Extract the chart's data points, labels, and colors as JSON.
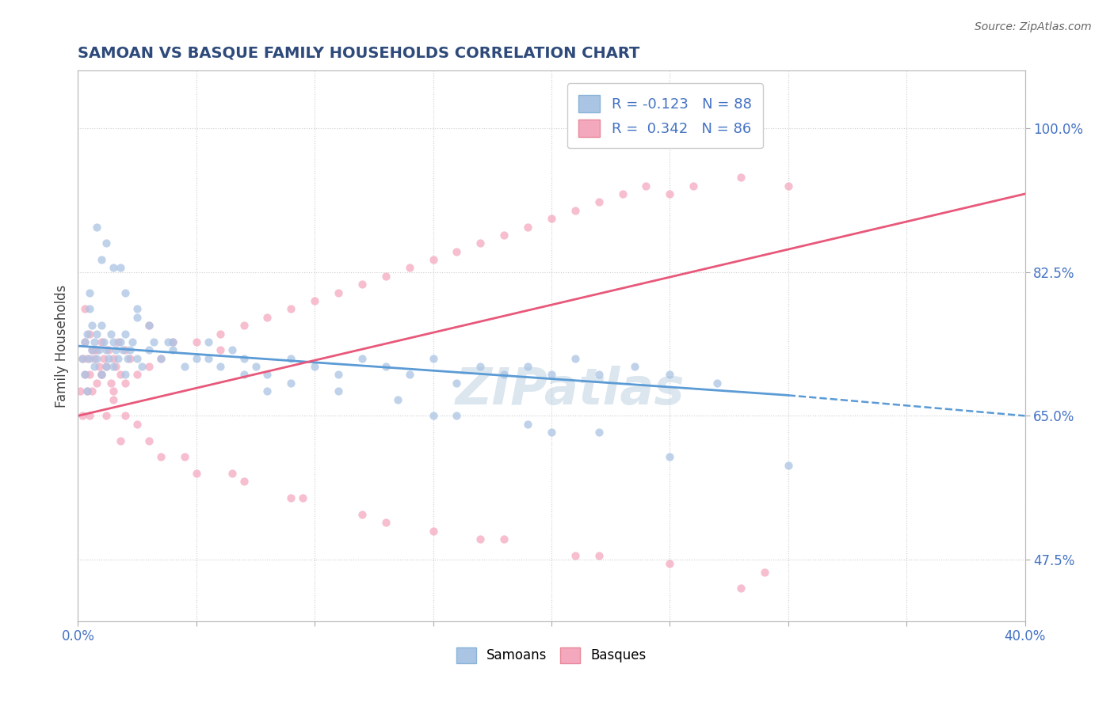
{
  "title": "SAMOAN VS BASQUE FAMILY HOUSEHOLDS CORRELATION CHART",
  "source": "Source: ZipAtlas.com",
  "ylabel": "Family Households",
  "right_yticks": [
    47.5,
    65.0,
    82.5,
    100.0
  ],
  "xlim": [
    0.0,
    40.0
  ],
  "ylim": [
    40.0,
    107.0
  ],
  "samoan_color": "#aac4e4",
  "basque_color": "#f4a8be",
  "trend_samoan_color": "#5b9bd5",
  "trend_basque_color": "#e8587a",
  "background_color": "#ffffff",
  "dot_size": 55,
  "dot_alpha": 0.75,
  "grid_color": "#cccccc",
  "title_color": "#2e4a7a",
  "watermark_color": "#b8cee0",
  "title_fontsize": 14,
  "right_tick_color": "#4472c4",
  "x_tick_color": "#4472c4",
  "samoan_x": [
    0.2,
    0.3,
    0.3,
    0.4,
    0.4,
    0.5,
    0.5,
    0.5,
    0.6,
    0.6,
    0.7,
    0.7,
    0.8,
    0.8,
    0.9,
    1.0,
    1.0,
    1.1,
    1.2,
    1.2,
    1.3,
    1.4,
    1.5,
    1.5,
    1.6,
    1.7,
    1.8,
    1.9,
    2.0,
    2.0,
    2.1,
    2.2,
    2.3,
    2.5,
    2.7,
    3.0,
    3.2,
    3.5,
    3.8,
    4.0,
    4.5,
    5.0,
    5.5,
    6.0,
    6.5,
    7.0,
    7.5,
    8.0,
    9.0,
    10.0,
    11.0,
    12.0,
    13.0,
    14.0,
    15.0,
    16.0,
    17.0,
    18.0,
    19.0,
    20.0,
    21.0,
    22.0,
    23.5,
    25.0,
    27.0,
    1.0,
    1.5,
    2.0,
    2.5,
    3.0,
    4.0,
    5.5,
    7.0,
    9.0,
    11.0,
    13.5,
    16.0,
    19.0,
    22.0,
    8.0,
    15.0,
    20.0,
    25.0,
    30.0,
    0.8,
    1.2,
    1.8,
    2.5
  ],
  "samoan_y": [
    72,
    74,
    70,
    75,
    68,
    80,
    78,
    72,
    76,
    73,
    74,
    71,
    75,
    72,
    73,
    76,
    70,
    74,
    73,
    71,
    72,
    75,
    74,
    71,
    73,
    72,
    74,
    73,
    75,
    70,
    72,
    73,
    74,
    72,
    71,
    73,
    74,
    72,
    74,
    73,
    71,
    72,
    74,
    71,
    73,
    72,
    71,
    70,
    72,
    71,
    70,
    72,
    71,
    70,
    72,
    69,
    71,
    70,
    71,
    70,
    72,
    70,
    71,
    70,
    69,
    84,
    83,
    80,
    77,
    76,
    74,
    72,
    70,
    69,
    68,
    67,
    65,
    64,
    63,
    68,
    65,
    63,
    60,
    59,
    88,
    86,
    83,
    78
  ],
  "basque_x": [
    0.1,
    0.2,
    0.2,
    0.3,
    0.3,
    0.4,
    0.4,
    0.5,
    0.5,
    0.6,
    0.6,
    0.7,
    0.8,
    0.8,
    0.9,
    1.0,
    1.0,
    1.1,
    1.2,
    1.3,
    1.4,
    1.5,
    1.5,
    1.6,
    1.7,
    1.8,
    2.0,
    2.0,
    2.2,
    2.5,
    3.0,
    3.5,
    4.0,
    5.0,
    6.0,
    7.0,
    8.0,
    9.0,
    10.0,
    11.0,
    12.0,
    13.0,
    14.0,
    15.0,
    16.0,
    17.0,
    18.0,
    19.0,
    20.0,
    21.0,
    22.0,
    23.0,
    24.0,
    25.0,
    26.0,
    28.0,
    30.0,
    1.2,
    1.8,
    2.5,
    3.5,
    5.0,
    7.0,
    9.0,
    12.0,
    15.0,
    18.0,
    22.0,
    0.3,
    0.5,
    0.7,
    1.0,
    1.5,
    2.0,
    3.0,
    4.5,
    6.5,
    9.5,
    13.0,
    17.0,
    21.0,
    25.0,
    29.0,
    28.0,
    3.0,
    6.0
  ],
  "basque_y": [
    68,
    72,
    65,
    70,
    74,
    68,
    72,
    65,
    70,
    73,
    68,
    72,
    69,
    73,
    71,
    70,
    74,
    72,
    71,
    73,
    69,
    72,
    68,
    71,
    74,
    70,
    73,
    69,
    72,
    70,
    71,
    72,
    74,
    74,
    75,
    76,
    77,
    78,
    79,
    80,
    81,
    82,
    83,
    84,
    85,
    86,
    87,
    88,
    89,
    90,
    91,
    92,
    93,
    92,
    93,
    94,
    93,
    65,
    62,
    64,
    60,
    58,
    57,
    55,
    53,
    51,
    50,
    48,
    78,
    75,
    73,
    70,
    67,
    65,
    62,
    60,
    58,
    55,
    52,
    50,
    48,
    47,
    46,
    44,
    76,
    73
  ],
  "trend_samoan_x0": 0.0,
  "trend_samoan_x1": 30.0,
  "trend_samoan_y0": 73.5,
  "trend_samoan_y1": 67.5,
  "trend_samoan_dash_x0": 30.0,
  "trend_samoan_dash_x1": 40.0,
  "trend_samoan_dash_y0": 67.5,
  "trend_samoan_dash_y1": 65.0,
  "trend_basque_x0": 0.0,
  "trend_basque_x1": 40.0,
  "trend_basque_y0": 65.0,
  "trend_basque_y1": 92.0
}
